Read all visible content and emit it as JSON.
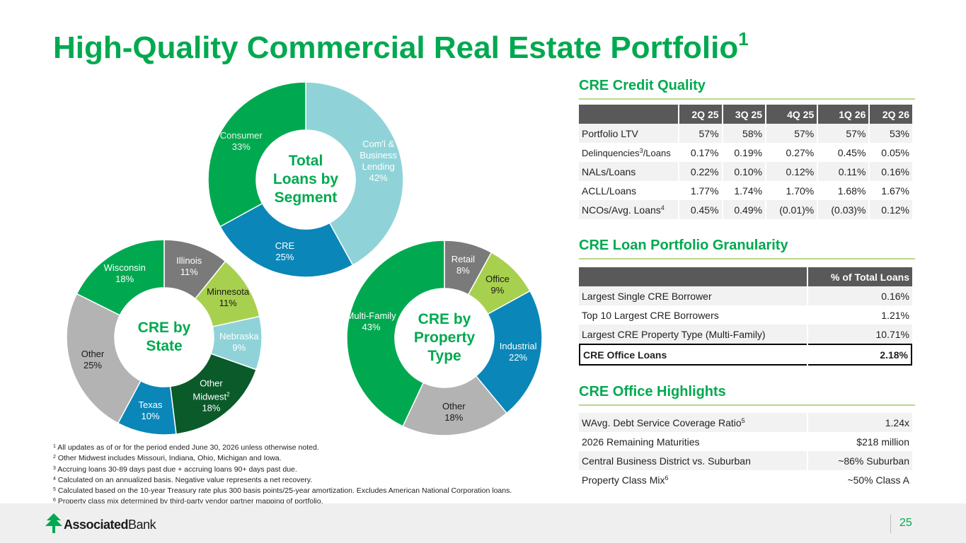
{
  "header": {
    "title": "High-Quality Commercial Real Estate Portfolio",
    "title_note": "1"
  },
  "chart_data": [
    {
      "type": "pie",
      "center_label": [
        "Total",
        "Loans by",
        "Segment"
      ],
      "categories": [
        "Com'l & Business Lending",
        "CRE",
        "Consumer"
      ],
      "values": [
        42,
        25,
        33
      ],
      "value_labels": [
        "42%",
        "25%",
        "33%"
      ],
      "colors": [
        "#8fd3d8",
        "#0b86b8",
        "#00a94f"
      ],
      "label_colors": [
        "#ffffff",
        "#ffffff",
        "#e8f5e9"
      ]
    },
    {
      "type": "pie",
      "center_label": [
        "CRE by",
        "State"
      ],
      "categories": [
        "Illinois",
        "Minnesota",
        "Nebraska",
        "Other Midwest",
        "Texas",
        "Other",
        "Wisconsin"
      ],
      "category_notes": [
        null,
        null,
        null,
        "2",
        null,
        null,
        null
      ],
      "values": [
        11,
        11,
        9,
        18,
        10,
        25,
        18
      ],
      "value_labels": [
        "11%",
        "11%",
        "9%",
        "18%",
        "10%",
        "25%",
        "18%"
      ],
      "colors": [
        "#7a7a7a",
        "#a8d04f",
        "#8fd3d8",
        "#0a5a2a",
        "#0b86b8",
        "#b3b3b3",
        "#00a94f"
      ],
      "label_colors": [
        "#ffffff",
        "#1a1a1a",
        "#ffffff",
        "#ffffff",
        "#ffffff",
        "#1a1a1a",
        "#ffffff"
      ]
    },
    {
      "type": "pie",
      "center_label": [
        "CRE by",
        "Property",
        "Type"
      ],
      "categories": [
        "Retail",
        "Office",
        "Industrial",
        "Other",
        "Multi-Family"
      ],
      "values": [
        8,
        9,
        22,
        18,
        43
      ],
      "value_labels": [
        "8%",
        "9%",
        "22%",
        "18%",
        "43%"
      ],
      "colors": [
        "#7a7a7a",
        "#a8d04f",
        "#0b86b8",
        "#b3b3b3",
        "#00a94f"
      ],
      "label_colors": [
        "#ffffff",
        "#1a1a1a",
        "#ffffff",
        "#1a1a1a",
        "#ffffff"
      ]
    }
  ],
  "credit_quality": {
    "title": "CRE Credit Quality",
    "columns": [
      "2Q 25",
      "3Q 25",
      "4Q 25",
      "1Q 26",
      "2Q 26"
    ],
    "rows": [
      {
        "label": "Portfolio LTV",
        "values": [
          "57%",
          "58%",
          "57%",
          "57%",
          "53%"
        ]
      },
      {
        "label": "Delinquencies",
        "note": "3",
        "label_end": "/Loans",
        "values": [
          "0.17%",
          "0.19%",
          "0.27%",
          "0.45%",
          "0.05%"
        ]
      },
      {
        "label": "NALs/Loans",
        "values": [
          "0.22%",
          "0.10%",
          "0.12%",
          "0.11%",
          "0.16%"
        ]
      },
      {
        "label": "ACLL/Loans",
        "values": [
          "1.77%",
          "1.74%",
          "1.70%",
          "1.68%",
          "1.67%"
        ]
      },
      {
        "label": "NCOs/Avg. Loans",
        "note": "4",
        "values": [
          "0.45%",
          "0.49%",
          "(0.01)%",
          "(0.03)%",
          "0.12%"
        ]
      }
    ]
  },
  "granularity": {
    "title": "CRE Loan Portfolio Granularity",
    "columns": [
      "% of Total Loans"
    ],
    "rows": [
      {
        "label": "Largest Single CRE Borrower",
        "values": [
          "0.16%"
        ]
      },
      {
        "label": "Top 10 Largest CRE Borrowers",
        "values": [
          "1.21%"
        ]
      },
      {
        "label": "Largest CRE Property Type (Multi-Family)",
        "values": [
          "10.71%"
        ]
      },
      {
        "label": "CRE Office Loans",
        "values": [
          "2.18%"
        ],
        "emphasis": true
      }
    ]
  },
  "office_highlights": {
    "title": "CRE Office Highlights",
    "rows": [
      {
        "label": "WAvg. Debt Service Coverage Ratio",
        "note": "5",
        "values": [
          "1.24x"
        ]
      },
      {
        "label": "2026 Remaining Maturities",
        "values": [
          "$218 million"
        ]
      },
      {
        "label": "Central Business District vs. Suburban",
        "values": [
          "~86% Suburban"
        ]
      },
      {
        "label": "Property Class Mix",
        "note": "6",
        "values": [
          "~50% Class A"
        ]
      }
    ]
  },
  "footnotes": [
    {
      "mark": "1",
      "text": "All updates as of or for the period ended June 30, 2026 unless otherwise noted."
    },
    {
      "mark": "2",
      "text": "Other Midwest includes Missouri, Indiana, Ohio, Michigan and Iowa."
    },
    {
      "mark": "3",
      "text": "Accruing loans 30-89 days past due + accruing loans 90+ days past due."
    },
    {
      "mark": "4",
      "text": "Calculated on an annualized basis. Negative value represents a net recovery."
    },
    {
      "mark": "5",
      "text": "Calculated based on the 10-year Treasury rate plus 300 basis points/25-year amortization. Excludes American National Corporation loans."
    },
    {
      "mark": "6",
      "text": "Property class mix determined by third-party vendor partner mapping of portfolio."
    }
  ],
  "footer": {
    "logo_bold": "Associated",
    "logo_regular": "Bank",
    "page_number": "25"
  }
}
